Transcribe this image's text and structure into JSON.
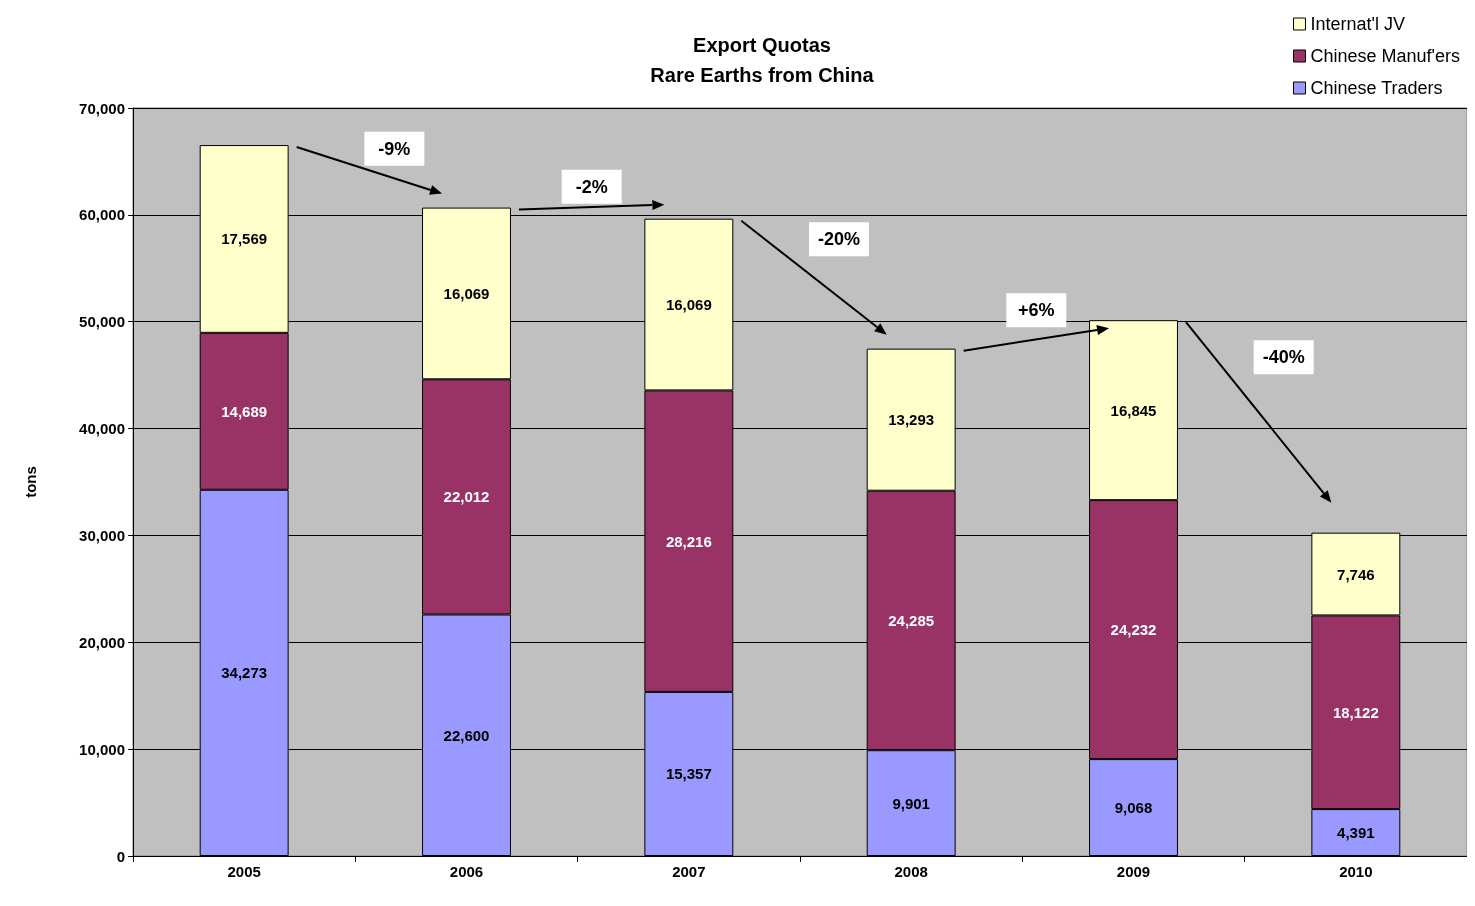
{
  "chart_data": {
    "type": "bar",
    "title": "Export Quotas",
    "subtitle": "Rare Earths from China",
    "ylabel": "tons",
    "categories": [
      "2005",
      "2006",
      "2007",
      "2008",
      "2009",
      "2010"
    ],
    "stacked": true,
    "series": [
      {
        "name": "Chinese Traders",
        "color": "#9999ff",
        "values": [
          34273,
          22600,
          15357,
          9901,
          9068,
          4391
        ],
        "value_labels": [
          "34,273",
          "22,600",
          "15,357",
          "9,901",
          "9,068",
          "4,391"
        ]
      },
      {
        "name": "Chinese Manuf'ers",
        "color": "#993366",
        "values": [
          14689,
          22012,
          28216,
          24285,
          24232,
          18122
        ],
        "value_labels": [
          "14,689",
          "22,012",
          "28,216",
          "24,285",
          "24,232",
          "18,122"
        ]
      },
      {
        "name": "Internat'l JV",
        "color": "#ffffcc",
        "values": [
          17569,
          16069,
          16069,
          13293,
          16845,
          7746
        ],
        "value_labels": [
          "17,569",
          "16,069",
          "16,069",
          "13,293",
          "16,845",
          "7,746"
        ]
      }
    ],
    "ylim": [
      0,
      70000
    ],
    "yticks": [
      {
        "value": 0,
        "label": "0"
      },
      {
        "value": 10000,
        "label": "10,000"
      },
      {
        "value": 20000,
        "label": "20,000"
      },
      {
        "value": 30000,
        "label": "30,000"
      },
      {
        "value": 40000,
        "label": "40,000"
      },
      {
        "value": 50000,
        "label": "50,000"
      },
      {
        "value": 60000,
        "label": "60,000"
      },
      {
        "value": 70000,
        "label": "70,000"
      }
    ],
    "grid": "y",
    "legend": "top right",
    "annotations": [
      "-9%",
      "-2%",
      "-20%",
      "+6%",
      "-40%"
    ]
  }
}
